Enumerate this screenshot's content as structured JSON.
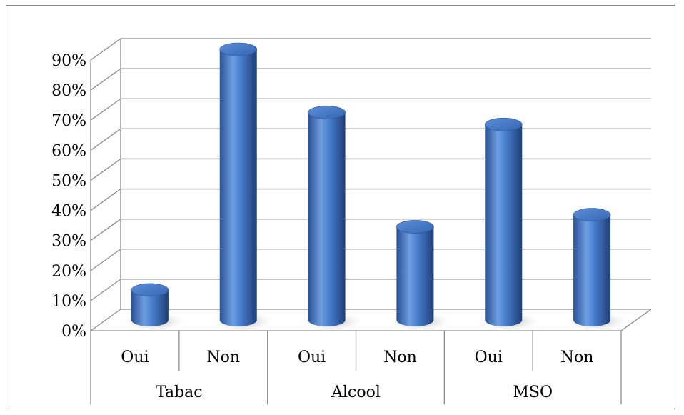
{
  "chart_data": {
    "type": "bar",
    "style": "3d-cylinder",
    "y_ticks": [
      "0%",
      "10%",
      "20%",
      "30%",
      "40%",
      "50%",
      "60%",
      "70%",
      "80%",
      "90%"
    ],
    "ylim": [
      0,
      90
    ],
    "grid": true,
    "bar_color": "#3f74c4",
    "categories": [
      {
        "label": "Oui",
        "group": "Tabac",
        "value": 10
      },
      {
        "label": "Non",
        "group": "Tabac",
        "value": 90
      },
      {
        "label": "Oui",
        "group": "Alcool",
        "value": 69
      },
      {
        "label": "Non",
        "group": "Alcool",
        "value": 31
      },
      {
        "label": "Oui",
        "group": "MSO",
        "value": 65
      },
      {
        "label": "Non",
        "group": "MSO",
        "value": 35
      }
    ],
    "groups": [
      "Tabac",
      "Alcool",
      "MSO"
    ]
  }
}
